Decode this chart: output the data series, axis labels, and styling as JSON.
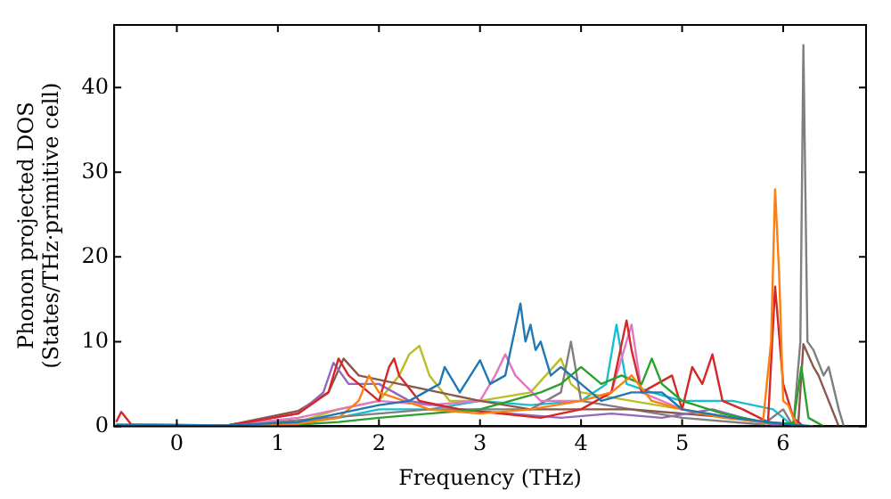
{
  "chart_data": {
    "type": "line",
    "xlabel": "Frequency (THz)",
    "ylabel": "Phonon projected DOS\n(States/THz·primitive cell)",
    "xlim": [
      -0.62,
      6.82
    ],
    "ylim": [
      0,
      47.4
    ],
    "xticks": [
      0,
      1,
      2,
      3,
      4,
      5,
      6
    ],
    "yticks": [
      0,
      10,
      20,
      30,
      40
    ],
    "grid": false,
    "legend": false,
    "marker": "none",
    "line_style": "solid",
    "series": [
      {
        "color": "#1f77b4",
        "x": [
          -0.6,
          0.5,
          1.2,
          1.6,
          2.0,
          2.3,
          2.6,
          2.65,
          2.8,
          3.0,
          3.1,
          3.25,
          3.4,
          3.45,
          3.5,
          3.55,
          3.6,
          3.7,
          3.8,
          4.0,
          4.2,
          4.5,
          4.8,
          5.0,
          5.5,
          6.0,
          6.3
        ],
        "values": [
          0.2,
          0.1,
          0.5,
          1.5,
          2.5,
          3,
          5,
          7,
          4,
          7.8,
          5,
          6,
          14.5,
          10,
          12,
          9,
          10,
          6,
          7,
          5,
          3,
          4,
          4,
          2,
          1,
          0.3,
          0
        ]
      },
      {
        "color": "#ff7f0e",
        "x": [
          -0.6,
          0.5,
          1.2,
          1.6,
          1.8,
          1.9,
          2.0,
          2.5,
          3.0,
          3.5,
          4.0,
          4.3,
          4.5,
          4.7,
          5.0,
          5.4,
          5.8,
          5.88,
          5.92,
          5.96,
          6.0,
          6.05,
          6.1,
          6.15
        ],
        "values": [
          0.1,
          0.1,
          0.3,
          1,
          3,
          6,
          4,
          2,
          1.5,
          2,
          3,
          4,
          6,
          3,
          2,
          1,
          0.5,
          10,
          28,
          18,
          3,
          2.5,
          1,
          0
        ]
      },
      {
        "color": "#2ca02c",
        "x": [
          -0.6,
          0.5,
          1.2,
          1.6,
          2.0,
          2.5,
          3.0,
          3.3,
          3.6,
          3.8,
          4.0,
          4.2,
          4.4,
          4.6,
          4.7,
          4.8,
          5.0,
          5.4,
          5.8,
          6.1,
          6.18,
          6.25,
          6.4
        ],
        "values": [
          0.1,
          0.1,
          0.2,
          0.5,
          1,
          1.5,
          2,
          3,
          4,
          5,
          7,
          5,
          6,
          5,
          8,
          5,
          3,
          1.5,
          0.5,
          0.3,
          7,
          1,
          0
        ]
      },
      {
        "color": "#d62728",
        "x": [
          -0.6,
          -0.55,
          -0.45,
          0.5,
          1.2,
          1.5,
          1.6,
          1.7,
          2.0,
          2.1,
          2.15,
          2.2,
          2.4,
          2.8,
          3.2,
          3.6,
          4.0,
          4.3,
          4.45,
          4.5,
          4.6,
          4.9,
          5.0,
          5.1,
          5.2,
          5.3,
          5.4,
          5.6,
          5.85,
          5.92,
          6.0,
          6.1,
          6.2
        ],
        "values": [
          0.5,
          1.7,
          0.2,
          0.1,
          1.5,
          4,
          8,
          6,
          3,
          7,
          8,
          6,
          3,
          2,
          1.5,
          1,
          2,
          4,
          12.5,
          9,
          4,
          6,
          2,
          7,
          5,
          8.5,
          3,
          2,
          0.5,
          16.5,
          5,
          1,
          0
        ]
      },
      {
        "color": "#9467bd",
        "x": [
          -0.6,
          0.5,
          1.2,
          1.45,
          1.55,
          1.7,
          2.0,
          2.3,
          2.8,
          3.3,
          3.8,
          4.3,
          4.8,
          5.3,
          5.6,
          6.0
        ],
        "values": [
          0.1,
          0.1,
          1.5,
          4,
          7.5,
          5,
          5,
          3,
          2,
          1.5,
          1,
          1.5,
          1,
          2,
          1,
          0
        ]
      },
      {
        "color": "#8c564b",
        "x": [
          -0.6,
          0.5,
          1.2,
          1.5,
          1.65,
          1.8,
          2.2,
          2.6,
          3.0,
          3.5,
          4.0,
          4.5,
          5.0,
          5.5,
          6.0,
          6.15,
          6.2,
          6.3,
          6.35,
          6.45,
          6.55
        ],
        "values": [
          0.1,
          0.1,
          1.8,
          4,
          8,
          6,
          5,
          4,
          3,
          2,
          2,
          2,
          1.5,
          1,
          0.2,
          0.5,
          9.7,
          7,
          6,
          3,
          0
        ]
      },
      {
        "color": "#e377c2",
        "x": [
          -0.6,
          0.5,
          1.2,
          1.6,
          2.0,
          2.5,
          3.0,
          3.15,
          3.25,
          3.35,
          3.6,
          4.0,
          4.3,
          4.5,
          4.6,
          5.0,
          5.5,
          6.0
        ],
        "values": [
          0.1,
          0.1,
          1,
          2,
          3,
          2.5,
          3,
          6,
          8.5,
          6,
          3,
          3,
          4,
          12,
          4,
          2,
          1,
          0
        ]
      },
      {
        "color": "#7f7f7f",
        "x": [
          -0.6,
          0.5,
          1.5,
          2.5,
          3.5,
          3.8,
          3.9,
          4.0,
          4.5,
          5.0,
          5.8,
          6.0,
          6.1,
          6.17,
          6.2,
          6.24,
          6.3,
          6.4,
          6.45,
          6.55,
          6.6
        ],
        "values": [
          0.1,
          0.1,
          1,
          2,
          2,
          4,
          10,
          3,
          2,
          1,
          0.2,
          2,
          0,
          10,
          45,
          10,
          9,
          6,
          7,
          2,
          0
        ]
      },
      {
        "color": "#bcbd22",
        "x": [
          -0.6,
          0.5,
          1.2,
          1.6,
          2.0,
          2.2,
          2.3,
          2.4,
          2.5,
          2.7,
          3.0,
          3.5,
          3.8,
          3.9,
          4.0,
          4.5,
          5.0,
          5.5,
          6.0
        ],
        "values": [
          0.1,
          0.1,
          0.5,
          2,
          3,
          6,
          8.5,
          9.5,
          6,
          3,
          3,
          4,
          8,
          5,
          4,
          3,
          2,
          1,
          0
        ]
      },
      {
        "color": "#17becf",
        "x": [
          1.2,
          1.6,
          2.0,
          2.5,
          3.0,
          3.5,
          4.0,
          4.25,
          4.35,
          4.45,
          4.7,
          5.0,
          5.5,
          5.9,
          6.1
        ],
        "values": [
          0.5,
          1,
          2,
          2,
          3,
          2.5,
          3,
          5,
          12,
          5,
          4,
          3,
          3,
          2,
          0
        ]
      }
    ]
  }
}
